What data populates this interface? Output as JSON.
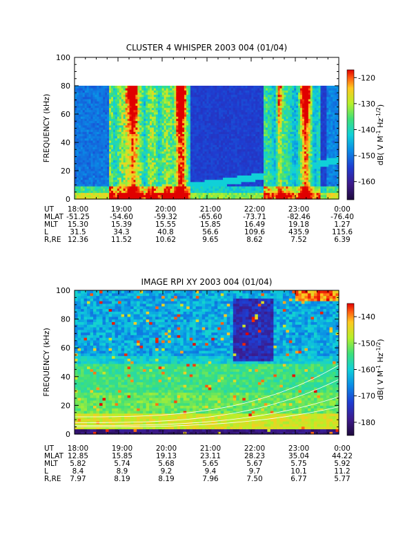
{
  "chart_data": [
    {
      "type": "heatmap",
      "title": "CLUSTER 4 WHISPER 2003 004 (01/04)",
      "ylabel": "FREQUENCY (kHz)",
      "ylim": [
        0,
        100
      ],
      "y_ticks": [
        "0",
        "20",
        "40",
        "60",
        "80",
        "100"
      ],
      "data_top_khz": 80,
      "x_ticks": [
        "18:00",
        "19:00",
        "20:00",
        "21:00",
        "22:00",
        "23:00",
        "0:00"
      ],
      "colorbar": {
        "label": "dB( V M⁻¹ Hz⁻¹ᐟ²)",
        "label_parts": [
          "dB( V M",
          "-1",
          " Hz",
          "-1/2",
          ")"
        ],
        "range": [
          -167,
          -117
        ],
        "ticks": [
          "-120",
          "-130",
          "-140",
          "-150",
          "-160"
        ],
        "tick_values": [
          -120,
          -130,
          -140,
          -150,
          -160
        ]
      },
      "bursts": [
        {
          "time": 19.3,
          "kind": "strong",
          "note": "19:00-20:30 intense emission reaching 80 kHz"
        },
        {
          "time": 20.4,
          "kind": "strong"
        },
        {
          "time": 22.65,
          "kind": "moderate"
        },
        {
          "time": 23.25,
          "kind": "strong",
          "note": "23:00-23:30 intense emission above 40 kHz"
        }
      ],
      "ephemeris": {
        "labels": [
          "UT",
          "MLAT",
          "MLT",
          "L",
          "R,RE"
        ],
        "rows": [
          [
            "18:00",
            "19:00",
            "20:00",
            "21:00",
            "22:00",
            "23:00",
            "0:00"
          ],
          [
            "-51.25",
            "-54.60",
            "-59.32",
            "-65.60",
            "-73.71",
            "-82.46",
            "-76.40"
          ],
          [
            "15.30",
            "15.39",
            "15.55",
            "15.85",
            "16.49",
            "19.18",
            "1.27"
          ],
          [
            "31.5",
            "34.3",
            "40.8",
            "56.6",
            "109.6",
            "435.9",
            "115.6"
          ],
          [
            "12.36",
            "11.52",
            "10.62",
            "9.65",
            "8.62",
            "7.52",
            "6.39"
          ]
        ]
      }
    },
    {
      "type": "heatmap",
      "title": "IMAGE RPI XY 2003 004 (01/04)",
      "ylabel": "FREQUENCY (kHz)",
      "ylim": [
        0,
        100
      ],
      "y_ticks": [
        "0",
        "20",
        "40",
        "60",
        "80",
        "100"
      ],
      "data_top_khz": 100,
      "x_ticks": [
        "18:00",
        "19:00",
        "20:00",
        "21:00",
        "22:00",
        "23:00",
        "0:00"
      ],
      "colorbar": {
        "label": "dB( V M⁻¹ Hz⁻¹ᐟ²)",
        "label_parts": [
          "dB( V M",
          "-1",
          " Hz",
          "-1/2",
          ")"
        ],
        "range": [
          -185,
          -135
        ],
        "ticks": [
          "-140",
          "-150",
          "-160",
          "-170",
          "-180"
        ],
        "tick_values": [
          -140,
          -150,
          -160,
          -170,
          -180
        ]
      },
      "ephemeris": {
        "labels": [
          "UT",
          "MLAT",
          "MLT",
          "L",
          "R,RE"
        ],
        "rows": [
          [
            "18:00",
            "19:00",
            "20:00",
            "21:00",
            "22:00",
            "23:00",
            "0:00"
          ],
          [
            "12.85",
            "15.85",
            "19.13",
            "23.11",
            "28.23",
            "35.04",
            "44.22"
          ],
          [
            "5.82",
            "5.74",
            "5.68",
            "5.65",
            "5.67",
            "5.75",
            "5.92"
          ],
          [
            "8.4",
            "8.9",
            "9.2",
            "9.4",
            "9.7",
            "10.1",
            "11.2"
          ],
          [
            "7.97",
            "8.19",
            "8.19",
            "7.96",
            "7.50",
            "6.77",
            "5.77"
          ]
        ]
      }
    }
  ]
}
